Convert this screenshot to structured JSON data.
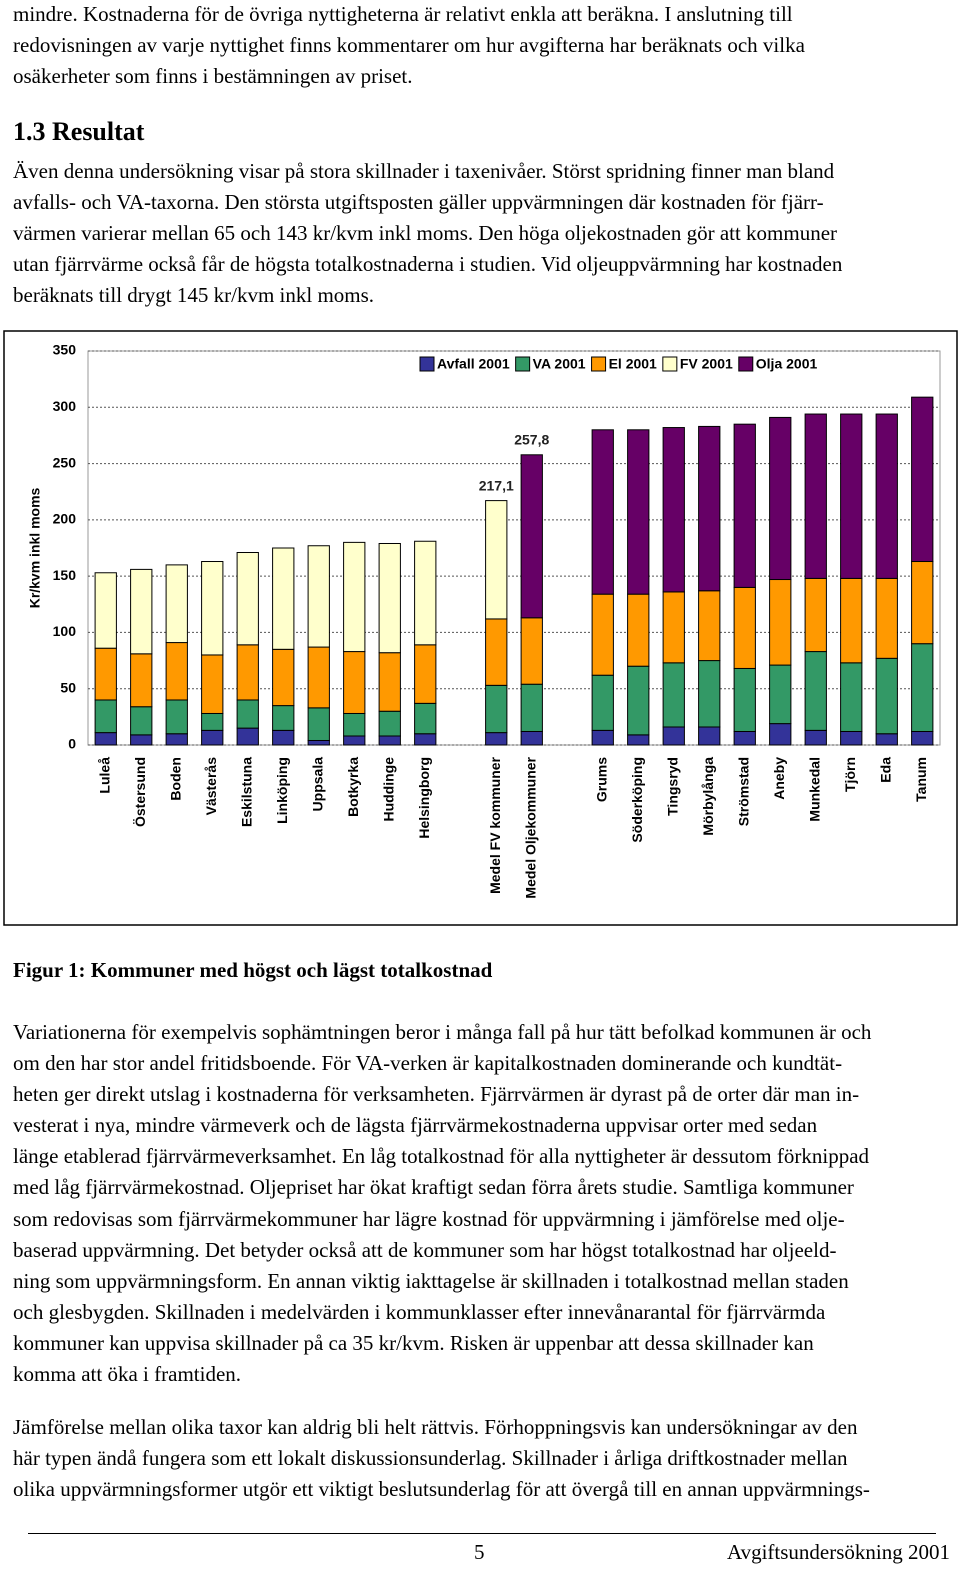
{
  "document": {
    "intro_lines": [
      "mindre. Kostnaderna för de övriga nyttigheterna är relativt enkla att beräkna. I anslutning till",
      "redovisningen av varje nyttighet finns kommentarer om hur avgifterna har beräknats och vilka",
      "osäkerheter som finns i bestämningen av priset."
    ],
    "heading": "1.3 Resultat",
    "para1_lines": [
      "Även denna undersökning visar på stora skillnader i taxenivåer. Störst spridning finner man bland",
      "avfalls- och VA-taxorna. Den största utgiftsposten gäller uppvärmningen där kostnaden för fjärr-",
      "värmen varierar mellan 65 och 143 kr/kvm inkl moms. Den höga oljekostnaden gör att kommuner",
      "utan fjärrvärme också får de högsta totalkostnaderna i studien. Vid oljeuppvärmning har kostnaden",
      "beräknats till drygt 145 kr/kvm inkl moms."
    ],
    "figure_caption": "Figur 1: Kommuner med högst och lägst totalkostnad",
    "para2_lines": [
      "Variationerna för exempelvis sophämtningen beror i många fall på hur tätt befolkad kommunen är och",
      "om den har stor andel fritidsboende. För VA-verken är kapitalkostnaden dominerande och kundtät-",
      "heten ger direkt utslag i kostnaderna för verksamheten. Fjärrvärmen är dyrast på de orter där man in-",
      "vesterat i nya, mindre värmeverk och de lägsta fjärrvärmekostnaderna uppvisar orter med sedan",
      "länge etablerad fjärrvärmeverksamhet. En låg totalkostnad för alla nyttigheter är dessutom förknippad",
      "med låg fjärrvärmekostnad. Oljepriset har ökat kraftigt sedan förra årets studie. Samtliga kommuner",
      "som redovisas som fjärrvärmekommuner har lägre kostnad för uppvärmning i jämförelse med olje-",
      "baserad uppvärmning. Det betyder också att de kommuner som har högst totalkostnad har oljeeld-",
      "ning som uppvärmningsform. En annan viktig iakttagelse är skillnaden i totalkostnad mellan staden",
      "och glesbygden. Skillnaden i medelvärden i kommunklasser efter innevånarantal för fjärrvärmda",
      "kommuner kan uppvisa skillnader på ca 35 kr/kvm. Risken är uppenbar att dessa skillnader kan",
      "komma att öka i framtiden."
    ],
    "para3_lines": [
      "Jämförelse mellan olika taxor kan aldrig bli helt rättvis. Förhoppningsvis kan undersökningar av den",
      "här typen ändå fungera som ett lokalt diskussionsunderlag. Skillnader i årliga driftkostnader mellan",
      "olika uppvärmningsformer utgör ett viktigt beslutsunderlag för att övergå till en annan uppvärmnings-"
    ],
    "footer": {
      "page": "5",
      "title": "Avgiftsundersökning 2001"
    }
  },
  "chart_data": {
    "type": "stacked-bar",
    "y_label": "Kr/kvm inkl moms",
    "categories": [
      "Luleå",
      "Östersund",
      "Boden",
      "Västerås",
      "Eskilstuna",
      "Linköping",
      "Uppsala",
      "Botkyrka",
      "Huddinge",
      "Helsingborg",
      null,
      "Medel FV kommuner",
      "Medel Oljekommuner",
      null,
      "Grums",
      "Söderköping",
      "Tingsryd",
      "Mörbylånga",
      "Strömstad",
      "Aneby",
      "Munkedal",
      "Tjörn",
      "Eda",
      "Tanum"
    ],
    "series": [
      {
        "name": "Avfall 2001",
        "color": "#333399",
        "values": [
          11,
          9,
          10,
          13,
          15,
          13,
          4,
          8,
          8,
          10,
          null,
          11,
          12,
          null,
          13,
          9,
          16,
          16,
          12,
          19,
          13,
          12,
          10,
          12
        ]
      },
      {
        "name": "VA 2001",
        "color": "#339966",
        "values": [
          29,
          25,
          30,
          15,
          25,
          22,
          29,
          20,
          22,
          27,
          null,
          42,
          42,
          null,
          49,
          61,
          57,
          59,
          56,
          52,
          70,
          61,
          67,
          78
        ]
      },
      {
        "name": "El 2001",
        "color": "#ff9900",
        "values": [
          46,
          47,
          51,
          52,
          49,
          50,
          54,
          55,
          52,
          52,
          null,
          59,
          59,
          null,
          72,
          64,
          63,
          62,
          72,
          76,
          65,
          75,
          71,
          73
        ]
      },
      {
        "name": "FV 2001",
        "color": "#ffffcc",
        "values": [
          67,
          75,
          69,
          83,
          82,
          90,
          90,
          97,
          97,
          92,
          null,
          105.1,
          null,
          null,
          null,
          null,
          null,
          null,
          null,
          null,
          null,
          null,
          null,
          null
        ]
      },
      {
        "name": "Olja 2001",
        "color": "#660066",
        "values": [
          null,
          null,
          null,
          null,
          null,
          null,
          null,
          null,
          null,
          null,
          null,
          null,
          144.8,
          null,
          146,
          146,
          146,
          146,
          145,
          144,
          146,
          146,
          146,
          146
        ]
      }
    ],
    "annotations": [
      {
        "text": "217,1",
        "value": 217.1,
        "index": 11
      },
      {
        "text": "257,8",
        "value": 257.8,
        "index": 12
      }
    ],
    "ylim": [
      0,
      350
    ],
    "yticks": [
      0,
      50,
      100,
      150,
      200,
      250,
      300,
      350
    ],
    "grid": true,
    "legend": "top"
  }
}
